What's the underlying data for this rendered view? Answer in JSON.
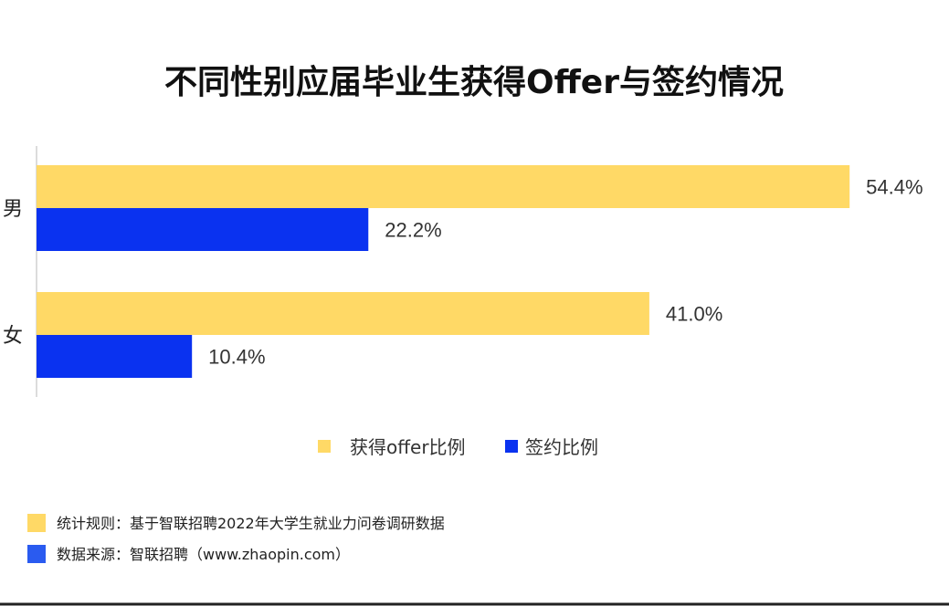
{
  "chart_data": {
    "type": "bar",
    "orientation": "horizontal",
    "title": "不同性别应届毕业生获得Offer与签约情况",
    "categories": [
      "男",
      "女"
    ],
    "series": [
      {
        "name": "获得offer比例",
        "values": [
          54.4,
          41.0
        ],
        "labels": [
          "54.4%",
          "41.0%"
        ],
        "color": "#FFD966"
      },
      {
        "name": "签约比例",
        "values": [
          22.2,
          10.4
        ],
        "labels": [
          "22.2%",
          "10.4%"
        ],
        "color": "#0A32F0"
      }
    ],
    "xlim": [
      0,
      55
    ],
    "grid": false,
    "legend_position": "bottom"
  },
  "notes": [
    {
      "text": "统计规则：基于智联招聘2022年大学生就业力问卷调研数据",
      "color": "#FFD966"
    },
    {
      "text": "数据来源：智联招聘（www.zhaopin.com）",
      "color": "#2A5BF0"
    }
  ]
}
